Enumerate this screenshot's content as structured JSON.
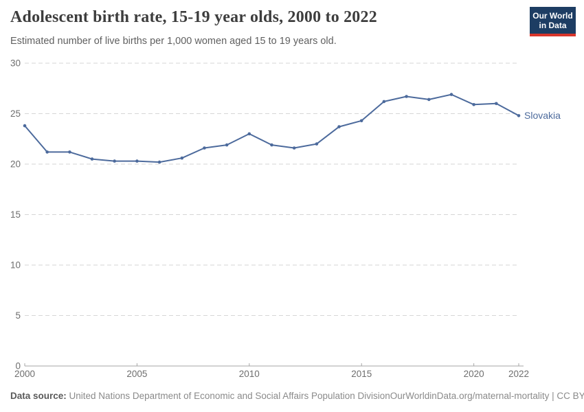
{
  "header": {
    "title": "Adolescent birth rate, 15-19 year olds, 2000 to 2022",
    "subtitle": "Estimated number of live births per 1,000 women aged 15 to 19 years old.",
    "logo": {
      "line1": "Our World",
      "line2": "in Data"
    }
  },
  "chart_data": {
    "type": "line",
    "title": "Adolescent birth rate, 15-19 year olds, 2000 to 2022",
    "xlabel": "",
    "ylabel": "Estimated number of live births per 1,000 women aged 15 to 19 years old",
    "x": [
      2000,
      2001,
      2002,
      2003,
      2004,
      2005,
      2006,
      2007,
      2008,
      2009,
      2010,
      2011,
      2012,
      2013,
      2014,
      2015,
      2016,
      2017,
      2018,
      2019,
      2020,
      2021,
      2022
    ],
    "series": [
      {
        "name": "Slovakia",
        "values": [
          23.8,
          21.2,
          21.2,
          20.5,
          20.3,
          20.3,
          20.2,
          20.6,
          21.6,
          21.9,
          23.0,
          21.9,
          21.6,
          22.0,
          23.7,
          24.3,
          26.2,
          26.7,
          26.4,
          26.9,
          25.9,
          26.0,
          24.8
        ],
        "color": "#4c6a9c"
      }
    ],
    "xticks": [
      2000,
      2005,
      2010,
      2015,
      2020,
      2022
    ],
    "yticks": [
      0,
      5,
      10,
      15,
      20,
      25,
      30
    ],
    "xlim": [
      2000,
      2022
    ],
    "ylim": [
      0,
      30
    ],
    "grid": "horizontal-dashed",
    "legend_position": "end-of-line-label",
    "markers": true
  },
  "footer": {
    "datasource_label": "Data source:",
    "datasource_text": " United Nations Department of Economic and Social Affairs Population Division",
    "link": "OurWorldinData.org/maternal-mortality | CC BY"
  },
  "colors": {
    "line": "#4c6a9c",
    "gridline": "#d6d6d6",
    "axis": "#a5a5a5",
    "tick_label": "#6e6e6e",
    "logo_navy": "#1d3d63",
    "logo_red": "#d8352b"
  }
}
